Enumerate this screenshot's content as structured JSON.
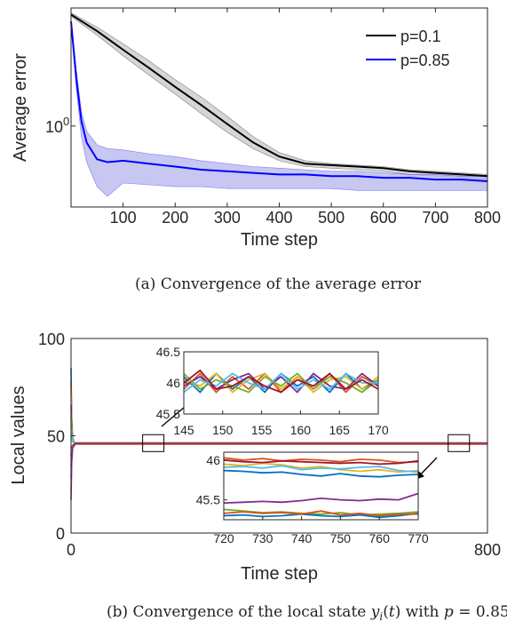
{
  "captions": {
    "a": "(a) Convergence of the average error",
    "b": "(b) Convergence of the local state y_i(t) with p = 0.85"
  },
  "chart_data": [
    {
      "type": "area",
      "xlabel": "Time step",
      "ylabel": "Average error",
      "xlim": [
        0,
        800
      ],
      "yscale": "log",
      "ylim": [
        0.45,
        3.2
      ],
      "x_ticks": [
        "100",
        "200",
        "300",
        "400",
        "500",
        "600",
        "700",
        "800"
      ],
      "y_ticks": [
        {
          "value": 1,
          "label": "10",
          "sup": "0"
        }
      ],
      "legend": {
        "placement": "top-right"
      },
      "series": [
        {
          "name": "p=0.1",
          "color": "#000000",
          "band_color": "#c8c8c8",
          "x": [
            0,
            50,
            100,
            150,
            200,
            250,
            300,
            350,
            400,
            450,
            500,
            550,
            600,
            650,
            700,
            750,
            800
          ],
          "mean": [
            3.0,
            2.55,
            2.12,
            1.77,
            1.47,
            1.23,
            1.02,
            0.85,
            0.74,
            0.69,
            0.68,
            0.67,
            0.66,
            0.64,
            0.63,
            0.62,
            0.61
          ],
          "upper": [
            3.05,
            2.65,
            2.25,
            1.9,
            1.58,
            1.33,
            1.1,
            0.9,
            0.77,
            0.71,
            0.69,
            0.68,
            0.67,
            0.65,
            0.64,
            0.63,
            0.62
          ],
          "lower": [
            2.95,
            2.45,
            2.0,
            1.65,
            1.37,
            1.13,
            0.94,
            0.8,
            0.71,
            0.67,
            0.66,
            0.65,
            0.64,
            0.62,
            0.61,
            0.6,
            0.59
          ]
        },
        {
          "name": "p=0.85",
          "color": "#0000ff",
          "band_color": "#b4b4ec",
          "x": [
            0,
            10,
            20,
            30,
            50,
            70,
            100,
            150,
            200,
            250,
            300,
            350,
            400,
            450,
            500,
            550,
            600,
            650,
            700,
            750,
            800
          ],
          "mean": [
            2.8,
            1.6,
            1.05,
            0.85,
            0.72,
            0.7,
            0.71,
            0.69,
            0.67,
            0.65,
            0.64,
            0.63,
            0.62,
            0.62,
            0.61,
            0.61,
            0.6,
            0.6,
            0.59,
            0.59,
            0.58
          ],
          "upper": [
            2.85,
            1.75,
            1.15,
            0.95,
            0.83,
            0.8,
            0.79,
            0.76,
            0.74,
            0.71,
            0.69,
            0.67,
            0.66,
            0.65,
            0.64,
            0.64,
            0.63,
            0.62,
            0.62,
            0.61,
            0.61
          ],
          "lower": [
            2.75,
            1.45,
            0.9,
            0.7,
            0.55,
            0.5,
            0.57,
            0.56,
            0.55,
            0.55,
            0.54,
            0.54,
            0.54,
            0.54,
            0.54,
            0.53,
            0.53,
            0.53,
            0.53,
            0.53,
            0.53
          ]
        }
      ]
    },
    {
      "type": "line",
      "xlabel": "Time step",
      "ylabel": "Local values",
      "xlim": [
        0,
        800
      ],
      "ylim": [
        0,
        100
      ],
      "x_ticks": [
        "0",
        "800"
      ],
      "y_ticks": [
        "0",
        "50",
        "100"
      ],
      "steady_value": 46,
      "initial_values": [
        85,
        78,
        72,
        66,
        60,
        55,
        40,
        34,
        28,
        22,
        17
      ],
      "colors": [
        "#0072bd",
        "#d95319",
        "#edb120",
        "#7e2f8e",
        "#77ac30",
        "#4dbeee",
        "#a2142f"
      ],
      "zoom_boxes": [
        {
          "x_range": [
            145,
            170
          ],
          "y": 46
        },
        {
          "x_range": [
            720,
            770
          ],
          "y": 46
        }
      ],
      "insets": [
        {
          "x_ticks": [
            "145",
            "150",
            "155",
            "160",
            "165",
            "170"
          ],
          "y_ticks": [
            "45.5",
            "46",
            "46.5"
          ],
          "xlim": [
            145,
            170
          ],
          "ylim": [
            45.5,
            46.5
          ],
          "series": [
            [
              46.1,
              45.85,
              46.15,
              45.9,
              46.1,
              45.85,
              46.15,
              45.95,
              46.1,
              45.85,
              46.15,
              45.9,
              46.05
            ],
            [
              45.9,
              46.15,
              45.85,
              46.1,
              45.9,
              46.15,
              45.85,
              46.1,
              45.9,
              46.15,
              45.85,
              46.1,
              45.95
            ],
            [
              46.05,
              45.95,
              46.15,
              45.85,
              46.05,
              46.15,
              45.9,
              46.1,
              45.85,
              46.05,
              46.1,
              45.9,
              46.1
            ],
            [
              45.95,
              46.1,
              45.9,
              46.05,
              46.15,
              45.9,
              46.1,
              45.85,
              46.15,
              45.95,
              45.9,
              46.15,
              45.95
            ],
            [
              46.15,
              45.9,
              46.05,
              45.95,
              45.85,
              46.1,
              45.95,
              46.15,
              45.9,
              46.1,
              46.0,
              45.85,
              46.05
            ],
            [
              45.85,
              46.05,
              45.95,
              46.15,
              46.0,
              45.9,
              46.15,
              45.9,
              46.05,
              45.9,
              46.15,
              46.0,
              46.0
            ],
            [
              46.0,
              46.2,
              45.9,
              45.95,
              46.1,
              45.95,
              45.85,
              46.05,
              45.95,
              46.15,
              45.9,
              46.05,
              45.9
            ]
          ]
        },
        {
          "x_ticks": [
            "720",
            "730",
            "740",
            "750",
            "760",
            "770"
          ],
          "y_ticks": [
            "45.5",
            "46"
          ],
          "xlim": [
            720,
            770
          ],
          "ylim": [
            45.25,
            46.1
          ],
          "series": [
            [
              45.87,
              45.86,
              45.84,
              45.85,
              45.82,
              45.8,
              45.83,
              45.8,
              45.79,
              45.81,
              45.82
            ],
            [
              46.03,
              46.0,
              46.02,
              45.99,
              46.01,
              46.0,
              45.98,
              46.01,
              46.0,
              45.97,
              45.98
            ],
            [
              45.95,
              45.93,
              45.96,
              45.94,
              45.9,
              45.92,
              45.88,
              45.86,
              45.88,
              45.85,
              45.87
            ],
            [
              45.46,
              45.47,
              45.48,
              45.47,
              45.49,
              45.52,
              45.5,
              45.49,
              45.51,
              45.5,
              45.58
            ],
            [
              45.38,
              45.36,
              45.34,
              45.35,
              45.33,
              45.32,
              45.34,
              45.31,
              45.32,
              45.33,
              45.35
            ],
            [
              45.91,
              45.92,
              45.9,
              45.93,
              45.88,
              45.9,
              45.89,
              45.91,
              45.92,
              45.87,
              45.85
            ],
            [
              46.0,
              45.98,
              45.97,
              45.99,
              45.98,
              45.97,
              45.96,
              45.97,
              45.95,
              45.96,
              45.99
            ],
            [
              45.3,
              45.31,
              45.29,
              45.3,
              45.32,
              45.3,
              45.29,
              45.31,
              45.28,
              45.3,
              45.33
            ],
            [
              45.33,
              45.35,
              45.33,
              45.34,
              45.32,
              45.36,
              45.31,
              45.33,
              45.3,
              45.32,
              45.32
            ]
          ]
        }
      ]
    }
  ]
}
